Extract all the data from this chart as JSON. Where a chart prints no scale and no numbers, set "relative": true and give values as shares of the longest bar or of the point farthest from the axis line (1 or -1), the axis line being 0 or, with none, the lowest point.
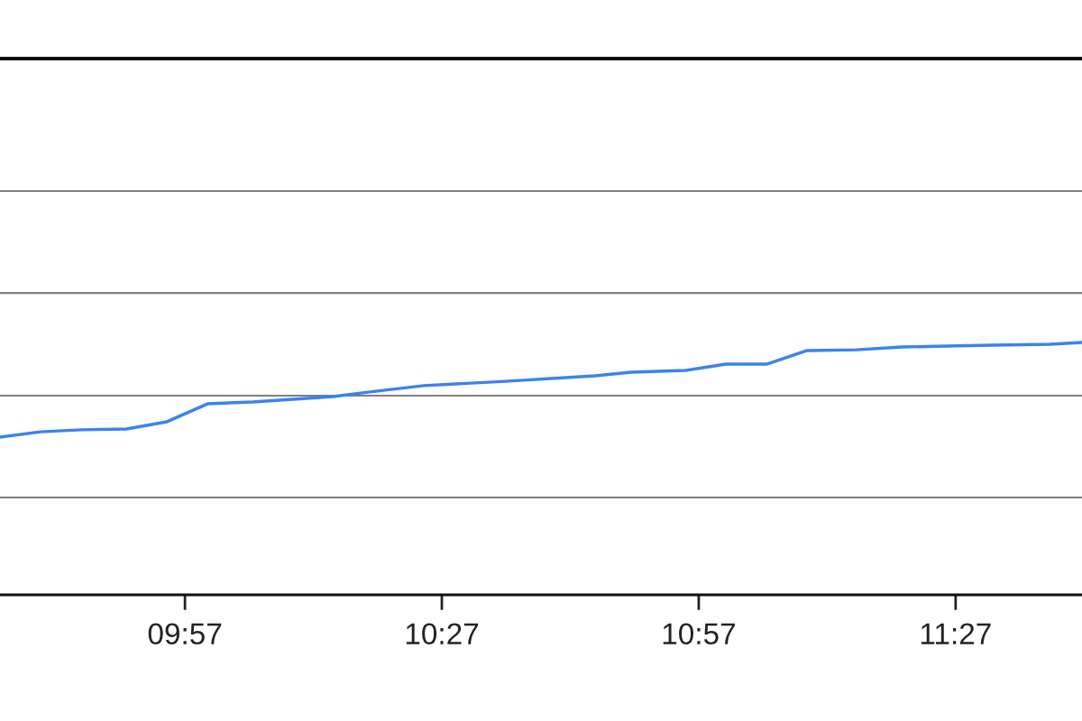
{
  "chart_data": {
    "type": "line",
    "relative": true,
    "marker": "none",
    "ref_lines": [
      {
        "axis": "y",
        "value": 0.386,
        "color": "#808080"
      },
      {
        "axis": "y",
        "value": 0.789,
        "color": "#808080"
      },
      {
        "axis": "y",
        "value": 1.196,
        "color": "#808080"
      },
      {
        "axis": "y",
        "value": 1.6,
        "color": "#808080"
      }
    ],
    "line_style": "solid",
    "x": [
      9.59,
      9.669,
      9.748,
      9.836,
      9.915,
      9.994,
      10.082,
      10.239,
      10.31,
      10.415,
      10.573,
      10.748,
      10.818,
      10.924,
      11.003,
      11.082,
      11.161,
      11.257,
      11.345,
      11.432,
      11.52,
      11.634,
      11.696
    ],
    "series": [
      {
        "color": "#3b82f0",
        "values": [
          0.625,
          0.646,
          0.654,
          0.657,
          0.686,
          0.757,
          0.764,
          0.786,
          0.804,
          0.829,
          0.846,
          0.868,
          0.882,
          0.889,
          0.914,
          0.914,
          0.968,
          0.971,
          0.982,
          0.986,
          0.989,
          0.993,
          1.0
        ]
      }
    ],
    "xlim": [
      9.59,
      11.696
    ],
    "xticks": [
      {
        "value": 9.95,
        "label": "09:57"
      },
      {
        "value": 10.45,
        "label": "10:27"
      },
      {
        "value": 10.95,
        "label": "10:57"
      },
      {
        "value": 11.45,
        "label": "11:27"
      }
    ]
  }
}
